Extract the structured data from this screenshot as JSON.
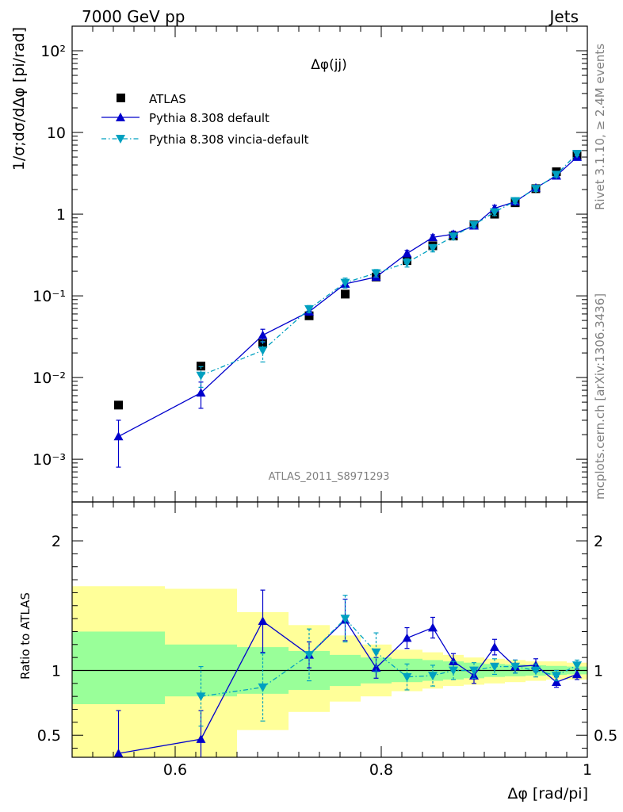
{
  "header": {
    "left": "7000 GeV pp",
    "right": "Jets"
  },
  "side": {
    "rivet": "Rivet 3.1.10, ≥ 2.4M events",
    "mcplots": "mcplots.cern.ch [arXiv:1306.3436]"
  },
  "chart_data": [
    {
      "type": "scatter",
      "title": "Δφ(jj)",
      "watermark": "ATLAS_2011_S8971293",
      "ylabel": "1/σ;dσ/dΔφ [pi/rad]",
      "yscale": "log",
      "ylim": [
        0.0003,
        200
      ],
      "xlim": [
        0.5,
        1.0
      ],
      "ytick_labels": [
        "10⁻³",
        "10⁻²",
        "10⁻¹",
        "1",
        "10",
        "10²"
      ],
      "legend_position": "top-left",
      "x": [
        0.545,
        0.625,
        0.685,
        0.73,
        0.765,
        0.795,
        0.825,
        0.85,
        0.87,
        0.89,
        0.91,
        0.93,
        0.95,
        0.97,
        0.99
      ],
      "series": [
        {
          "name": "ATLAS",
          "color": "#000000",
          "marker": "square",
          "values": [
            0.0046,
            0.0138,
            0.026,
            0.057,
            0.105,
            0.17,
            0.27,
            0.41,
            0.54,
            0.74,
            1.0,
            1.38,
            2.05,
            3.3,
            5.2
          ]
        },
        {
          "name": "Pythia 8.308 default",
          "color": "#0000cc",
          "marker": "triangle-up",
          "values": [
            0.0019,
            0.0065,
            0.033,
            0.064,
            0.14,
            0.17,
            0.33,
            0.52,
            0.57,
            0.72,
            1.18,
            1.42,
            2.1,
            2.95,
            5.0
          ],
          "err_low": [
            0.0011,
            0.0023,
            0.006,
            0.006,
            0.015,
            0.015,
            0.03,
            0.04,
            0.05,
            0.06,
            0.1,
            0.1,
            0.15,
            0.2,
            0.3
          ],
          "err_high": [
            0.0011,
            0.0023,
            0.006,
            0.006,
            0.015,
            0.015,
            0.03,
            0.04,
            0.05,
            0.06,
            0.1,
            0.1,
            0.15,
            0.2,
            0.3
          ]
        },
        {
          "name": "Pythia 8.308 vincia-default",
          "color": "#00a0c0",
          "marker": "triangle-down",
          "values": [
            null,
            0.0106,
            0.0215,
            0.069,
            0.145,
            0.19,
            0.255,
            0.385,
            0.535,
            0.74,
            1.06,
            1.45,
            2.05,
            3.05,
            5.5
          ],
          "err_low": [
            null,
            0.003,
            0.006,
            0.007,
            0.02,
            0.02,
            0.03,
            0.04,
            0.05,
            0.06,
            0.1,
            0.1,
            0.15,
            0.2,
            0.3
          ],
          "err_high": [
            null,
            0.003,
            0.006,
            0.007,
            0.02,
            0.02,
            0.03,
            0.04,
            0.05,
            0.06,
            0.1,
            0.1,
            0.15,
            0.2,
            0.3
          ]
        }
      ]
    },
    {
      "type": "scatter",
      "ylabel": "Ratio to ATLAS",
      "xlabel": "Δφ [rad/pi]",
      "xlim": [
        0.5,
        1.0
      ],
      "ylim": [
        0.33,
        2.3
      ],
      "xticks": [
        0.6,
        0.8,
        1.0
      ],
      "xtick_labels": [
        "0.6",
        "0.8",
        "1"
      ],
      "yticks": [
        0.5,
        1,
        2
      ],
      "ytick_labels": [
        "0.5",
        "1",
        "2"
      ],
      "reference_line": 1,
      "bands": {
        "edges": [
          0.5,
          0.59,
          0.66,
          0.71,
          0.75,
          0.78,
          0.81,
          0.84,
          0.86,
          0.88,
          0.9,
          0.92,
          0.94,
          0.96,
          0.98,
          1.0
        ],
        "green": {
          "color": "#99ff99",
          "low": [
            0.74,
            0.8,
            0.82,
            0.85,
            0.88,
            0.9,
            0.91,
            0.92,
            0.93,
            0.94,
            0.95,
            0.955,
            0.96,
            0.965,
            0.97
          ],
          "high": [
            1.3,
            1.2,
            1.18,
            1.15,
            1.12,
            1.1,
            1.09,
            1.08,
            1.07,
            1.06,
            1.05,
            1.045,
            1.04,
            1.035,
            1.03
          ]
        },
        "yellow": {
          "color": "#ffff99",
          "low": [
            0.33,
            0.33,
            0.54,
            0.68,
            0.76,
            0.8,
            0.84,
            0.86,
            0.88,
            0.89,
            0.9,
            0.91,
            0.92,
            0.93,
            0.93
          ],
          "high": [
            1.65,
            1.63,
            1.45,
            1.35,
            1.27,
            1.2,
            1.16,
            1.14,
            1.12,
            1.1,
            1.09,
            1.08,
            1.07,
            1.07,
            1.06
          ]
        }
      },
      "x": [
        0.545,
        0.625,
        0.685,
        0.73,
        0.765,
        0.795,
        0.825,
        0.85,
        0.87,
        0.89,
        0.91,
        0.93,
        0.95,
        0.97,
        0.99
      ],
      "series": [
        {
          "name": "Pythia 8.308 default",
          "color": "#0000cc",
          "marker": "triangle-up",
          "values": [
            0.36,
            0.47,
            1.38,
            1.12,
            1.39,
            1.02,
            1.25,
            1.33,
            1.07,
            0.96,
            1.18,
            1.03,
            1.04,
            0.91,
            0.97
          ],
          "err_low": [
            0.33,
            0.22,
            0.24,
            0.1,
            0.16,
            0.08,
            0.08,
            0.08,
            0.06,
            0.06,
            0.06,
            0.05,
            0.05,
            0.04,
            0.04
          ],
          "err_high": [
            0.33,
            0.22,
            0.24,
            0.1,
            0.16,
            0.08,
            0.08,
            0.08,
            0.06,
            0.06,
            0.06,
            0.05,
            0.05,
            0.04,
            0.04
          ]
        },
        {
          "name": "Pythia 8.308 vincia-default",
          "color": "#00a0c0",
          "marker": "triangle-down",
          "values": [
            null,
            0.8,
            0.87,
            1.12,
            1.4,
            1.14,
            0.95,
            0.96,
            1.0,
            1.0,
            1.03,
            1.03,
            1.0,
            0.96,
            1.04
          ],
          "err_low": [
            null,
            0.23,
            0.26,
            0.2,
            0.18,
            0.15,
            0.1,
            0.08,
            0.07,
            0.06,
            0.06,
            0.05,
            0.05,
            0.04,
            0.04
          ],
          "err_high": [
            null,
            0.23,
            0.26,
            0.2,
            0.18,
            0.15,
            0.1,
            0.08,
            0.07,
            0.06,
            0.06,
            0.05,
            0.05,
            0.04,
            0.04
          ]
        }
      ]
    }
  ]
}
